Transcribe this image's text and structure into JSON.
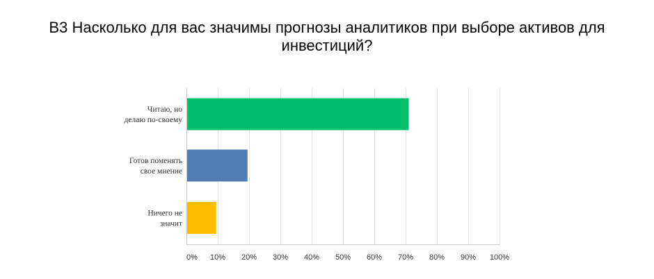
{
  "chart_data": {
    "type": "bar",
    "orientation": "horizontal",
    "title_lines": [
      "B3 Насколько для вас значимы прогнозы аналитиков при выборе активов для",
      "инвестиций?"
    ],
    "categories": [
      {
        "label_lines": [
          "Читаю, но",
          "делаю по-своему"
        ],
        "value": 71,
        "color": "#00bf6f"
      },
      {
        "label_lines": [
          "Готов поменять",
          "свое мнение"
        ],
        "value": 19.5,
        "color": "#507cb6"
      },
      {
        "label_lines": [
          "Ничего не",
          "значит"
        ],
        "value": 9.5,
        "color": "#f9be00"
      }
    ],
    "xlim": [
      0,
      100
    ],
    "ticks": [
      0,
      10,
      20,
      30,
      40,
      50,
      60,
      70,
      80,
      90,
      100
    ],
    "tick_labels": [
      "0%",
      "10%",
      "20%",
      "30%",
      "40%",
      "50%",
      "60%",
      "70%",
      "80%",
      "90%",
      "100%"
    ],
    "grid": true,
    "legend": "none"
  }
}
